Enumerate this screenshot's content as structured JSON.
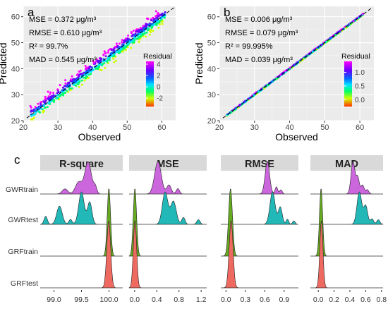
{
  "chart_data": [
    {
      "panel": "a",
      "type": "scatter",
      "xlabel": "Observed",
      "ylabel": "Predicted",
      "xlim": [
        20,
        64
      ],
      "ylim": [
        20,
        64
      ],
      "xticks": [
        20,
        30,
        40,
        50,
        60
      ],
      "yticks": [
        20,
        30,
        40,
        50,
        60
      ],
      "grid": true,
      "stats": [
        "MSE = 0.372 μg/m³",
        "RMSE = 0.610 μg/m³",
        "R² = 99.7%",
        "MAD = 0.545 μg/m³"
      ],
      "colorbar": {
        "title": "Residual",
        "min": -3.5,
        "max": 4.5,
        "ticks": [
          4,
          2,
          0,
          -2
        ]
      },
      "identity_line": true,
      "spread": 1.3
    },
    {
      "panel": "b",
      "type": "scatter",
      "xlabel": "Observed",
      "ylabel": "Predicted",
      "xlim": [
        20,
        64
      ],
      "ylim": [
        20,
        64
      ],
      "xticks": [
        20,
        30,
        40,
        50,
        60
      ],
      "yticks": [
        20,
        30,
        40,
        50,
        60
      ],
      "grid": true,
      "stats": [
        "MSE = 0.006 μg/m³",
        "RMSE = 0.079 μg/m³",
        "R² = 99.995%",
        "MAD = 0.039 μg/m³"
      ],
      "colorbar": {
        "title": "Residual",
        "min": -0.25,
        "max": 1.4,
        "ticks": [
          "1.0",
          "0.5",
          "0.0"
        ]
      },
      "identity_line": true,
      "spread": 0.15
    },
    {
      "panel": "c",
      "type": "ridgeline",
      "rows": [
        "GWRtrain",
        "GWRtest",
        "GRFtrain",
        "GRFtest"
      ],
      "row_colors": {
        "GWRtrain": "#cc66dd",
        "GWRtest": "#22b8b8",
        "GRFtrain": "#66aa22",
        "GRFtest": "#ee6a60"
      },
      "facets": [
        {
          "title": "R-square",
          "xlim": [
            98.75,
            100.25
          ],
          "ticks": [
            "99.0",
            "99.5",
            "100.0"
          ],
          "tick_values": [
            99.0,
            99.5,
            100.0
          ],
          "curves": {
            "GWRtrain": [
              [
                99.2,
                0.15,
                0.05
              ],
              [
                99.45,
                0.35,
                0.06
              ],
              [
                99.62,
                0.95,
                0.06
              ],
              [
                99.75,
                0.2,
                0.03
              ]
            ],
            "GWRtest": [
              [
                98.85,
                0.2,
                0.03
              ],
              [
                99.1,
                0.45,
                0.05
              ],
              [
                99.5,
                0.8,
                0.05
              ],
              [
                99.65,
                0.55,
                0.04
              ],
              [
                99.3,
                0.12,
                0.03
              ]
            ],
            "GRFtrain": [
              [
                99.998,
                1,
                0.03
              ]
            ],
            "GRFtest": [
              [
                99.995,
                1,
                0.035
              ]
            ]
          }
        },
        {
          "title": "MSE",
          "xlim": [
            -0.1,
            1.3
          ],
          "ticks": [
            "0.0",
            "0.4",
            "0.8",
            "1.2"
          ],
          "tick_values": [
            0.0,
            0.4,
            0.8,
            1.2
          ],
          "curves": {
            "GWRtrain": [
              [
                0.42,
                0.9,
                0.06
              ],
              [
                0.62,
                0.25,
                0.04
              ],
              [
                0.78,
                0.15,
                0.03
              ]
            ],
            "GWRtest": [
              [
                0.55,
                0.7,
                0.05
              ],
              [
                0.7,
                0.5,
                0.05
              ],
              [
                0.88,
                0.15,
                0.03
              ],
              [
                1.15,
                0.1,
                0.03
              ]
            ],
            "GRFtrain": [
              [
                0.005,
                1,
                0.03
              ]
            ],
            "GRFtest": [
              [
                0.006,
                1,
                0.03
              ]
            ]
          }
        },
        {
          "title": "RMSE",
          "xlim": [
            -0.08,
            1.12
          ],
          "ticks": [
            "0.0",
            "0.3",
            "0.6",
            "0.9"
          ],
          "tick_values": [
            0.0,
            0.3,
            0.6,
            0.9
          ],
          "curves": {
            "GWRtrain": [
              [
                0.64,
                0.9,
                0.035
              ],
              [
                0.78,
                0.2,
                0.02
              ],
              [
                0.85,
                0.12,
                0.02
              ]
            ],
            "GWRtest": [
              [
                0.72,
                0.75,
                0.04
              ],
              [
                0.84,
                0.4,
                0.03
              ],
              [
                0.95,
                0.12,
                0.02
              ],
              [
                1.05,
                0.08,
                0.02
              ]
            ],
            "GRFtrain": [
              [
                0.07,
                1,
                0.03
              ]
            ],
            "GRFtest": [
              [
                0.079,
                1,
                0.03
              ]
            ]
          }
        },
        {
          "title": "MAD",
          "xlim": [
            -0.1,
            0.82
          ],
          "ticks": [
            "0.0",
            "0.2",
            "0.4",
            "0.6",
            "0.8"
          ],
          "tick_values": [
            0.0,
            0.2,
            0.4,
            0.6,
            0.8
          ],
          "curves": {
            "GWRtrain": [
              [
                0.44,
                0.9,
                0.025
              ],
              [
                0.5,
                0.45,
                0.02
              ],
              [
                0.56,
                0.25,
                0.02
              ],
              [
                0.62,
                0.12,
                0.02
              ]
            ],
            "GWRtest": [
              [
                0.52,
                0.7,
                0.03
              ],
              [
                0.6,
                0.4,
                0.025
              ],
              [
                0.68,
                0.12,
                0.02
              ],
              [
                0.76,
                0.1,
                0.02
              ]
            ],
            "GRFtrain": [
              [
                0.035,
                1,
                0.02
              ]
            ],
            "GRFtest": [
              [
                0.039,
                1,
                0.02
              ]
            ]
          }
        }
      ]
    }
  ]
}
